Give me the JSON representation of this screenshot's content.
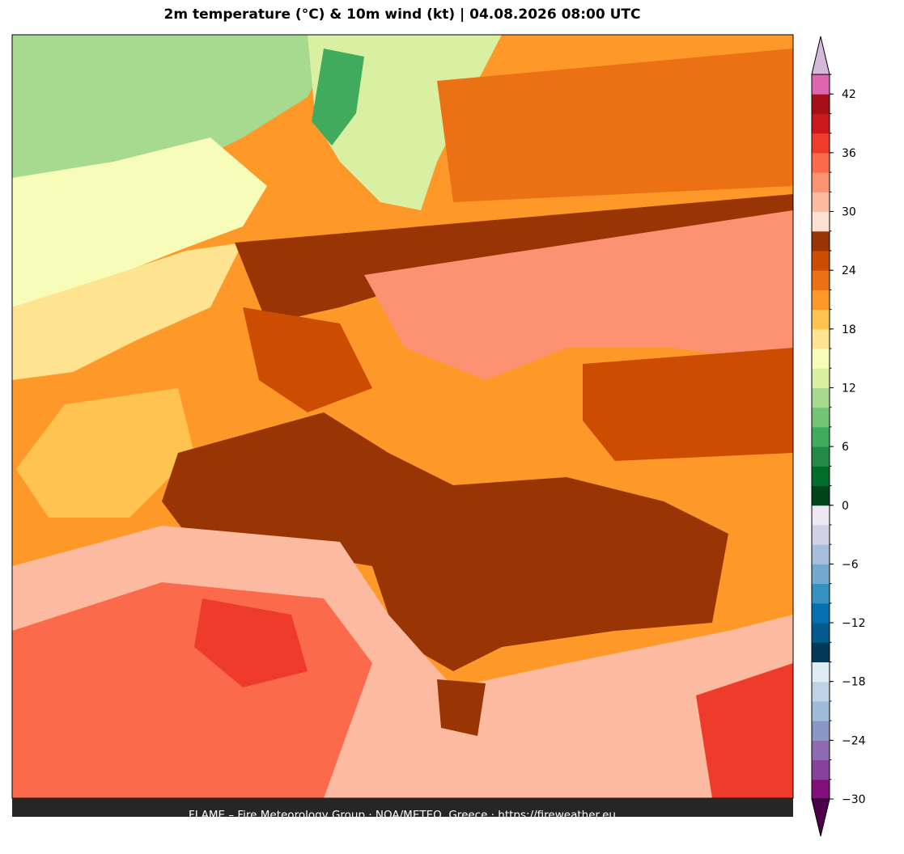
{
  "title": "2m temperature (°C) & 10m wind (kt)  |  04.08.2026 08:00 UTC",
  "footer": "FLAME – Fire Meteorology Group · NOA/METEO, Greece · https://fireweather.eu",
  "colorbar": {
    "levels": [
      -30,
      -28,
      -26,
      -24,
      -22,
      -20,
      -18,
      -16,
      -14,
      -12,
      -10,
      -8,
      -6,
      -4,
      -2,
      0,
      2,
      4,
      6,
      8,
      10,
      12,
      14,
      16,
      18,
      20,
      22,
      24,
      26,
      28,
      30,
      32,
      34,
      36,
      38,
      40,
      42,
      44
    ],
    "colors": [
      "#810f7c",
      "#88419d",
      "#8c6bb1",
      "#8c96c6",
      "#9ebcda",
      "#bfd3e6",
      "#e0ecf4",
      "#023858",
      "#045a8d",
      "#0570b0",
      "#3690c0",
      "#74a9cf",
      "#a6bddb",
      "#d0d1e6",
      "#ece7f2",
      "#00441b",
      "#006d2c",
      "#238b45",
      "#41ab5d",
      "#74c476",
      "#a6db8f",
      "#d9f0a3",
      "#f7fcb9",
      "#fee391",
      "#fec44f",
      "#fe9929",
      "#ec7014",
      "#cc4c02",
      "#993404",
      "#fee0d2",
      "#fcbba1",
      "#fc9272",
      "#fb6a4a",
      "#ef3b2c",
      "#cb181d",
      "#a50f15",
      "#df65b0"
    ],
    "under_color": "#4d004b",
    "over_color": "#d4b9da",
    "ticks": [
      {
        "value": -30,
        "label": "−30"
      },
      {
        "value": -24,
        "label": "−24"
      },
      {
        "value": -18,
        "label": "−18"
      },
      {
        "value": -12,
        "label": "−12"
      },
      {
        "value": -6,
        "label": "−6"
      },
      0,
      6,
      12,
      18,
      24,
      30,
      36,
      42
    ]
  }
}
